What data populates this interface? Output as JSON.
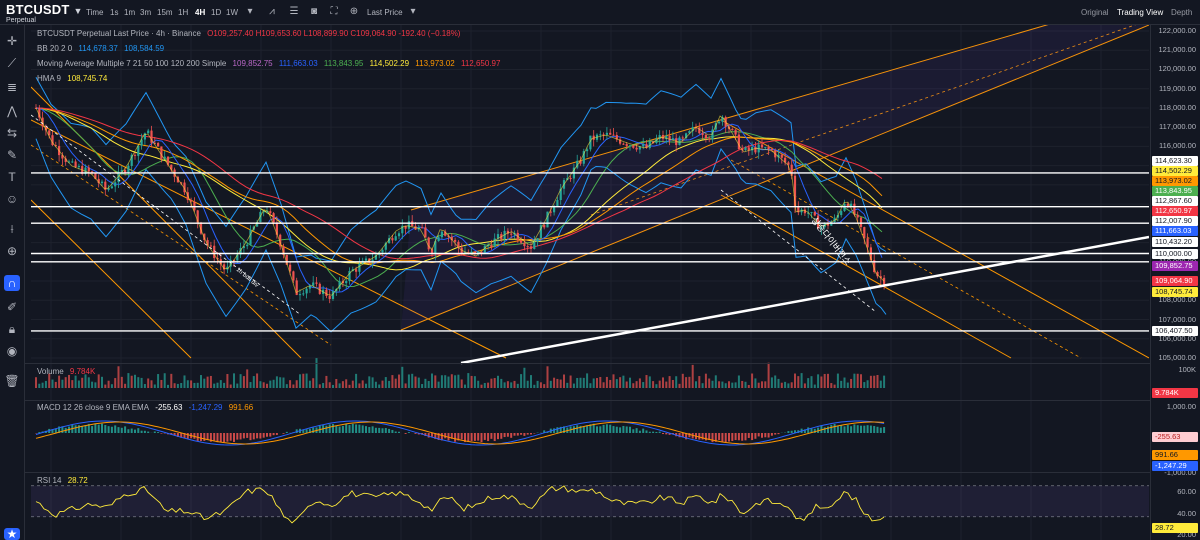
{
  "header": {
    "symbol": "BTCUSDT",
    "subtitle": "Perpetual",
    "timeframes": [
      "Time",
      "1s",
      "1m",
      "3m",
      "15m",
      "1H",
      "4H",
      "1D",
      "1W"
    ],
    "active_timeframe": "4H",
    "price_source": "Last Price",
    "modes": [
      "Original",
      "Trading View",
      "Depth"
    ],
    "active_mode": "Trading View"
  },
  "legend": {
    "title": "BTCUSDT Perpetual Last Price · 4h · Binance",
    "ohlc": "O109,257.40  H109,653.60  L108,899.90  C109,064.90  -192.40 (−0.18%)",
    "bb_label": "BB 20 2 0",
    "bb_values": [
      "114,678.37",
      "108,584.59"
    ],
    "ma_label": "Moving Average Multiple 7 21 50 100 120 200 Simple",
    "ma_values": [
      "109,852.75",
      "111,663.03",
      "113,843.95",
      "114,502.29",
      "113,973.02",
      "112,650.97"
    ],
    "hma_label": "HMA 9",
    "hma_value": "108,745.74",
    "volume_label": "Volume",
    "volume_value": "9.784K",
    "macd_label": "MACD 12 26 close 9 EMA EMA",
    "macd_values": [
      "-255.63",
      "-1,247.29",
      "991.66"
    ],
    "rsi_label": "RSI 14",
    "rsi_value": "28.72"
  },
  "annotations": {
    "trend_label": "1h bull div",
    "korean_label": "상승다이버전스"
  },
  "price_axis": {
    "ticks": [
      "122,000.00",
      "121,000.00",
      "120,000.00",
      "119,000.00",
      "118,000.00",
      "117,000.00",
      "116,000.00",
      "115,000.00",
      "114,000.00",
      "113,000.00",
      "112,000.00",
      "111,000.00",
      "110,000.00",
      "109,000.00",
      "108,000.00",
      "107,000.00",
      "106,000.00",
      "105,000.00"
    ],
    "tags": [
      {
        "text": "114,623.30",
        "bg": "#ffffff",
        "fg": "#131722"
      },
      {
        "text": "114,502.29",
        "bg": "#ffeb3b",
        "fg": "#131722"
      },
      {
        "text": "113,973.02",
        "bg": "#ff9800",
        "fg": "#131722"
      },
      {
        "text": "113,843.95",
        "bg": "#4caf50",
        "fg": "#ffffff"
      },
      {
        "text": "112,867.60",
        "bg": "#ffffff",
        "fg": "#131722"
      },
      {
        "text": "112,650.97",
        "bg": "#f23645",
        "fg": "#ffffff"
      },
      {
        "text": "112,007.90",
        "bg": "#ffffff",
        "fg": "#131722"
      },
      {
        "text": "111,663.03",
        "bg": "#2962ff",
        "fg": "#ffffff"
      },
      {
        "text": "110,432.20",
        "bg": "#ffffff",
        "fg": "#131722"
      },
      {
        "text": "110,000.00",
        "bg": "#ffffff",
        "fg": "#131722"
      },
      {
        "text": "109,852.75",
        "bg": "#9c27b0",
        "fg": "#ffffff"
      },
      {
        "text": "109,064.90",
        "bg": "#f23645",
        "fg": "#ffffff"
      },
      {
        "text": "108,745.74",
        "bg": "#ffeb3b",
        "fg": "#131722"
      },
      {
        "text": "106,407.50",
        "bg": "#ffffff",
        "fg": "#131722"
      }
    ],
    "volume_ticks": [
      "100K"
    ],
    "volume_tag": {
      "text": "9.784K",
      "bg": "#f23645",
      "fg": "#ffffff"
    },
    "macd_ticks": [
      "1,000.00",
      "-1,000.00"
    ],
    "macd_tags": [
      {
        "text": "-255.63",
        "bg": "#ffcdd2",
        "fg": "#b71c1c"
      },
      {
        "text": "991.66",
        "bg": "#ff9800",
        "fg": "#131722"
      },
      {
        "text": "-1,247.29",
        "bg": "#2962ff",
        "fg": "#ffffff"
      }
    ],
    "rsi_ticks": [
      "60.00",
      "40.00",
      "20.00"
    ],
    "rsi_tag": {
      "text": "28.72",
      "bg": "#ffeb3b",
      "fg": "#131722"
    }
  },
  "colors": {
    "background": "#131722",
    "up": "#26a69a",
    "down": "#ef5350",
    "bb": "#2196f3",
    "channel": "#ff9800",
    "trendline": "#ffffff"
  },
  "icons": [
    "crosshair-icon",
    "trendline-icon",
    "fib-icon",
    "pattern-icon",
    "projection-icon",
    "brush-icon",
    "text-icon",
    "emoji-icon",
    "ruler-icon",
    "zoom-icon",
    "magnet-icon",
    "lock-icon",
    "eye-icon",
    "trash-icon"
  ]
}
